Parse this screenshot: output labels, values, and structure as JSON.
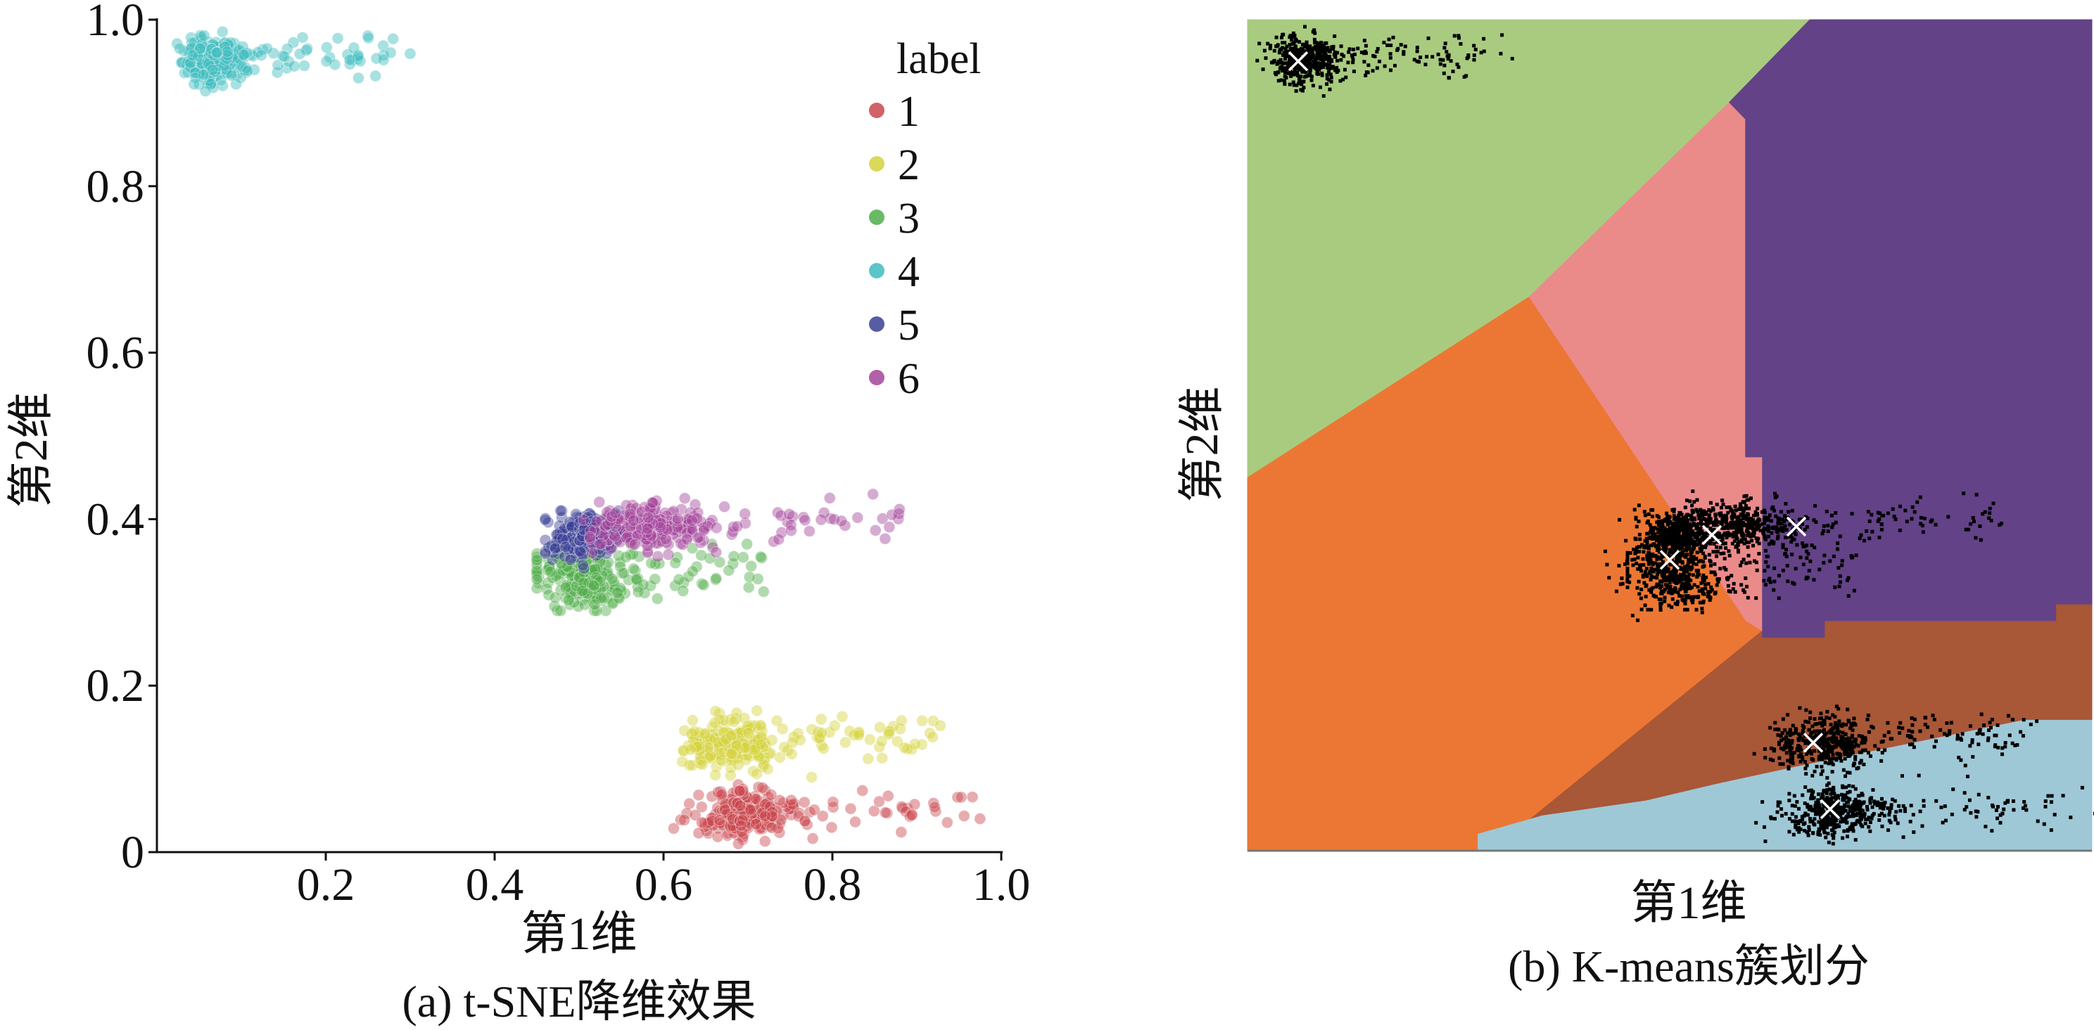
{
  "chart_data": [
    {
      "type": "scatter",
      "caption": "(a) t-SNE降维效果",
      "xlabel": "第1维",
      "ylabel": "第2维",
      "xlim": [
        0,
        1.0
      ],
      "ylim": [
        0,
        1.0
      ],
      "xticks": [
        "0.2",
        "0.4",
        "0.6",
        "0.8",
        "1.0"
      ],
      "xtick_values": [
        0.2,
        0.4,
        0.6,
        0.8,
        1.0
      ],
      "yticks": [
        "0",
        "0.2",
        "0.4",
        "0.6",
        "0.8",
        "1.0"
      ],
      "ytick_values": [
        0,
        0.2,
        0.4,
        0.6,
        0.8,
        1.0
      ],
      "grid": false,
      "legend": {
        "title": "label",
        "placement": "top-right"
      },
      "series": [
        {
          "name": "1",
          "color": "#c9474e",
          "center": [
            0.69,
            0.045
          ],
          "spread": [
            0.03,
            0.015
          ],
          "x_extent": [
            0.61,
            0.99
          ],
          "y_extent": [
            0.01,
            0.09
          ]
        },
        {
          "name": "2",
          "color": "#d4d23c",
          "center": [
            0.68,
            0.13
          ],
          "spread": [
            0.03,
            0.015
          ],
          "x_extent": [
            0.61,
            0.94
          ],
          "y_extent": [
            0.09,
            0.17
          ]
        },
        {
          "name": "3",
          "color": "#4fae4a",
          "center": [
            0.5,
            0.33
          ],
          "spread": [
            0.03,
            0.02
          ],
          "x_extent": [
            0.45,
            0.72
          ],
          "y_extent": [
            0.29,
            0.37
          ]
        },
        {
          "name": "4",
          "color": "#3dbcbf",
          "center": [
            0.07,
            0.95
          ],
          "spread": [
            0.02,
            0.015
          ],
          "x_extent": [
            0.02,
            0.31
          ],
          "y_extent": [
            0.9,
            0.99
          ]
        },
        {
          "name": "5",
          "color": "#3a3f94",
          "center": [
            0.5,
            0.38
          ],
          "spread": [
            0.02,
            0.015
          ],
          "x_extent": [
            0.46,
            0.56
          ],
          "y_extent": [
            0.34,
            0.41
          ]
        },
        {
          "name": "6",
          "color": "#a3449b",
          "center": [
            0.58,
            0.39
          ],
          "spread": [
            0.04,
            0.015
          ],
          "x_extent": [
            0.5,
            0.88
          ],
          "y_extent": [
            0.35,
            0.43
          ]
        }
      ]
    },
    {
      "type": "scatter",
      "caption": "(b) K-means簇划分",
      "xlabel": "第1维",
      "ylabel": "第2维",
      "xlim": [
        0,
        1.0
      ],
      "ylim": [
        0,
        1.0
      ],
      "ticks_shown": false,
      "grid": false,
      "point_color": "#000000",
      "centroid_color": "#ffffff",
      "centroids": [
        [
          0.06,
          0.95
        ],
        [
          0.55,
          0.38
        ],
        [
          0.5,
          0.35
        ],
        [
          0.65,
          0.39
        ],
        [
          0.67,
          0.13
        ],
        [
          0.69,
          0.05
        ]
      ],
      "regions": [
        {
          "color": "#a9cb80",
          "polygon": [
            [
              0,
              1
            ],
            [
              0.666,
              1
            ],
            [
              0.57,
              0.9
            ],
            [
              0.333,
              0.666
            ],
            [
              0,
              0.449
            ]
          ]
        },
        {
          "color": "#634287",
          "polygon": [
            [
              0.666,
              1
            ],
            [
              1,
              1
            ],
            [
              1,
              0.296
            ],
            [
              0.958,
              0.296
            ],
            [
              0.958,
              0.276
            ],
            [
              0.684,
              0.276
            ],
            [
              0.684,
              0.256
            ],
            [
              0.609,
              0.256
            ],
            [
              0.609,
              0.473
            ],
            [
              0.589,
              0.473
            ],
            [
              0.589,
              0.88
            ],
            [
              0.57,
              0.88
            ],
            [
              0.57,
              0.9
            ]
          ]
        },
        {
          "color": "#ea8b8a",
          "polygon": [
            [
              0.57,
              0.9
            ],
            [
              0.589,
              0.88
            ],
            [
              0.589,
              0.473
            ],
            [
              0.609,
              0.473
            ],
            [
              0.609,
              0.264
            ],
            [
              0.59,
              0.276
            ],
            [
              0.333,
              0.666
            ]
          ]
        },
        {
          "color": "#ec7734",
          "polygon": [
            [
              0,
              0.449
            ],
            [
              0.333,
              0.666
            ],
            [
              0.59,
              0.276
            ],
            [
              0.609,
              0.264
            ],
            [
              0.313,
              0.02
            ],
            [
              0.273,
              0.02
            ],
            [
              0.273,
              0
            ],
            [
              0,
              0
            ]
          ]
        },
        {
          "color": "#a85737",
          "polygon": [
            [
              0.609,
              0.264
            ],
            [
              0.609,
              0.256
            ],
            [
              0.684,
              0.256
            ],
            [
              0.684,
              0.276
            ],
            [
              0.958,
              0.276
            ],
            [
              0.958,
              0.296
            ],
            [
              1,
              0.296
            ],
            [
              1,
              0.157
            ],
            [
              0.92,
              0.157
            ],
            [
              0.646,
              0.1
            ],
            [
              0.555,
              0.08
            ],
            [
              0.472,
              0.06
            ],
            [
              0.349,
              0.042
            ],
            [
              0.273,
              0.02
            ],
            [
              0.313,
              0.02
            ]
          ]
        },
        {
          "color": "#9fc8d7",
          "polygon": [
            [
              0.273,
              0
            ],
            [
              0.273,
              0.02
            ],
            [
              0.349,
              0.042
            ],
            [
              0.472,
              0.06
            ],
            [
              0.555,
              0.08
            ],
            [
              0.646,
              0.1
            ],
            [
              0.92,
              0.157
            ],
            [
              1,
              0.157
            ],
            [
              1,
              0
            ]
          ]
        }
      ]
    }
  ]
}
